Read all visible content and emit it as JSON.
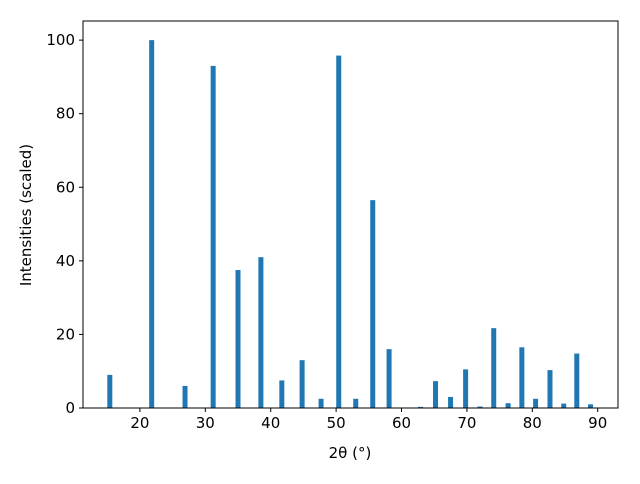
{
  "chart_data": {
    "type": "bar",
    "x_label": "2θ (°)",
    "y_label": "Intensities (scaled)",
    "x": [
      15.4,
      21.8,
      26.9,
      31.2,
      35.0,
      38.5,
      41.7,
      44.8,
      47.7,
      50.4,
      53.0,
      55.6,
      58.1,
      62.9,
      65.2,
      67.5,
      69.8,
      72.0,
      74.1,
      76.3,
      78.4,
      80.5,
      82.7,
      84.8,
      86.8,
      88.9
    ],
    "values": [
      9,
      100,
      6,
      93,
      37.5,
      41,
      7.5,
      13,
      2.5,
      95.8,
      2.5,
      56.5,
      16,
      0.3,
      7.3,
      3,
      10.5,
      0.4,
      21.7,
      1.3,
      16.5,
      2.5,
      10.3,
      1.2,
      14.8,
      1
    ],
    "color": "#1f77b4",
    "xlim": [
      11.3,
      93.1
    ],
    "ylim": [
      0,
      105.2
    ],
    "xticks": [
      20,
      30,
      40,
      50,
      60,
      70,
      80,
      90
    ],
    "yticks": [
      0,
      20,
      40,
      60,
      80,
      100
    ]
  }
}
